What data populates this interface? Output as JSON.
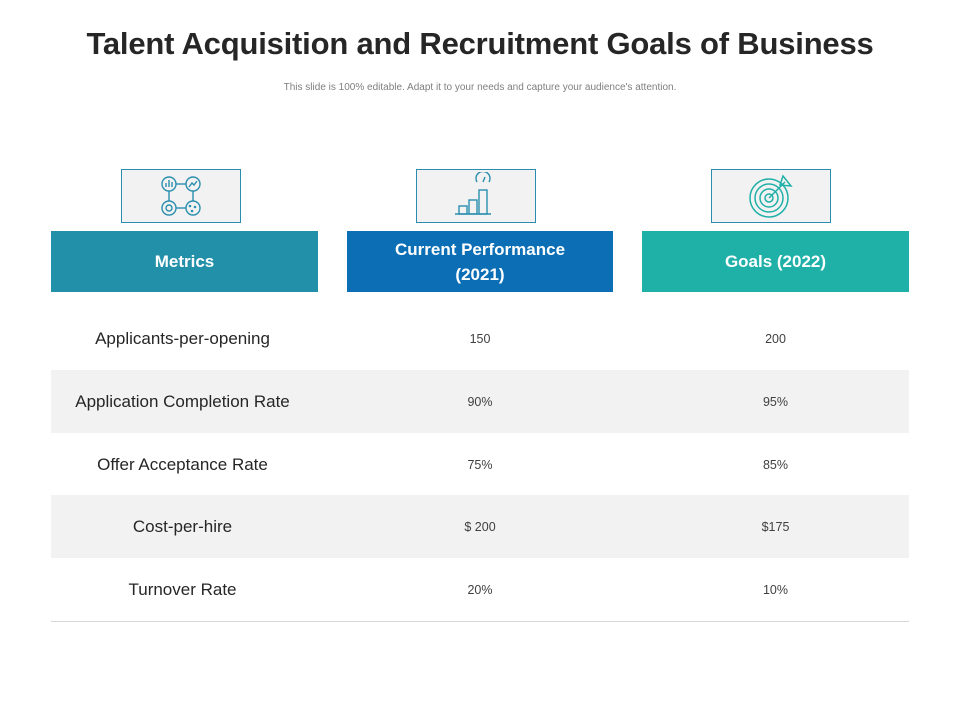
{
  "title": "Talent Acquisition and Recruitment Goals of Business",
  "subtitle": "This slide is 100% editable. Adapt it to your needs and capture your audience's attention.",
  "colors": {
    "metrics_header": "#2390aa",
    "current_header": "#0c6fb6",
    "goals_header": "#1fb0a8",
    "icon_stroke": "#2a8fae",
    "row_shade": "#f2f2f2"
  },
  "icons": {
    "metrics": "analytics-dashboard-icon",
    "current": "bar-chart-gauge-icon",
    "goals": "target-arrow-icon"
  },
  "headers": {
    "metrics": "Metrics",
    "current_line1": "Current Performance",
    "current_line2": "(2021)",
    "goals": "Goals (2022)"
  },
  "rows": [
    {
      "metric": "Applicants-per-opening",
      "current": "150",
      "goal": "200"
    },
    {
      "metric": "Application Completion Rate",
      "current": "90%",
      "goal": "95%"
    },
    {
      "metric": "Offer Acceptance Rate",
      "current": "75%",
      "goal": "85%"
    },
    {
      "metric": "Cost-per-hire",
      "current": "$ 200",
      "goal": "$175"
    },
    {
      "metric": "Turnover Rate",
      "current": "20%",
      "goal": "10%"
    }
  ]
}
